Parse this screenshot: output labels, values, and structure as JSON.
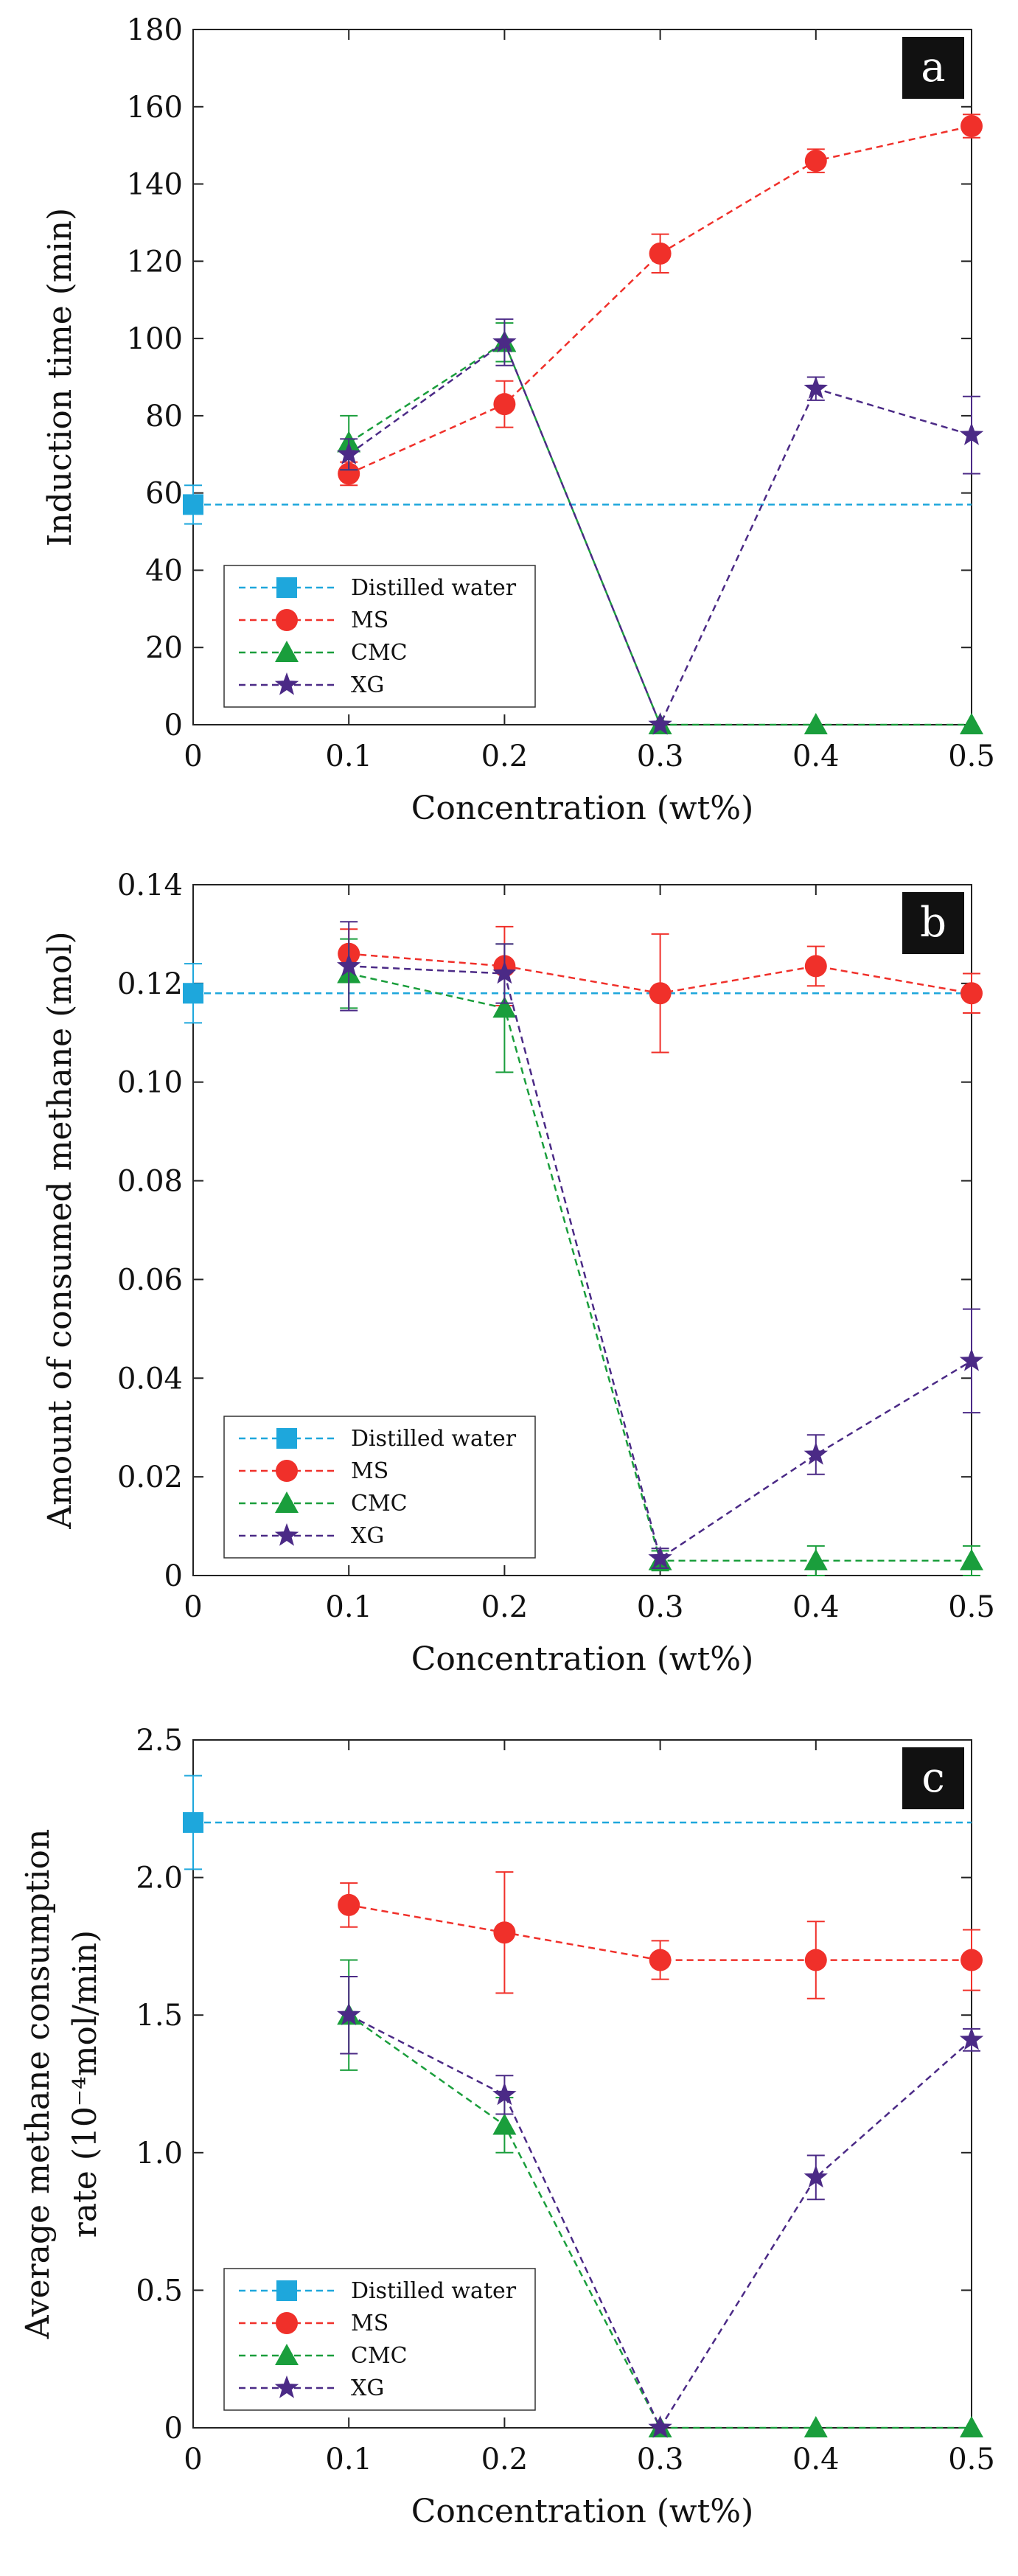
{
  "chart_data": [
    {
      "type": "line",
      "panel_label": "a",
      "xlabel": "Concentration (wt%)",
      "ylabel": "Induction time (min)",
      "xlim": [
        0,
        0.5
      ],
      "ylim": [
        0,
        180
      ],
      "x_ticks": [
        0,
        0.1,
        0.2,
        0.3,
        0.4,
        0.5
      ],
      "x_tick_labels": [
        "0",
        "0.1",
        "0.2",
        "0.3",
        "0.4",
        "0.5"
      ],
      "y_ticks": [
        0,
        20,
        40,
        60,
        80,
        100,
        120,
        140,
        160,
        180
      ],
      "y_tick_labels": [
        "0",
        "20",
        "40",
        "60",
        "80",
        "100",
        "120",
        "140",
        "160",
        "180"
      ],
      "legend_position": "bottom-left",
      "series": [
        {
          "name": "Distilled water",
          "color": "#1ea7dc",
          "marker": "square",
          "x": [
            0
          ],
          "values": [
            57
          ],
          "err": [
            5
          ],
          "baseline": 57
        },
        {
          "name": "MS",
          "color": "#f0302a",
          "marker": "circle",
          "x": [
            0.1,
            0.2,
            0.3,
            0.4,
            0.5
          ],
          "values": [
            65,
            83,
            122,
            146,
            155
          ],
          "err": [
            3,
            6,
            5,
            3,
            3
          ]
        },
        {
          "name": "CMC",
          "color": "#1a9e3c",
          "marker": "triangle",
          "x": [
            0.1,
            0.2,
            0.3,
            0.4,
            0.5
          ],
          "values": [
            73,
            99,
            0,
            0,
            0
          ],
          "err": [
            7,
            5,
            0,
            0,
            0
          ]
        },
        {
          "name": "XG",
          "color": "#4b2a86",
          "marker": "star",
          "x": [
            0.1,
            0.2,
            0.3,
            0.4,
            0.5
          ],
          "values": [
            70,
            99,
            0,
            87,
            75
          ],
          "err": [
            4,
            6,
            0,
            3,
            10
          ]
        }
      ]
    },
    {
      "type": "line",
      "panel_label": "b",
      "xlabel": "Concentration (wt%)",
      "ylabel": "Amount of consumed methane (mol)",
      "xlim": [
        0,
        0.5
      ],
      "ylim": [
        0,
        0.14
      ],
      "x_ticks": [
        0,
        0.1,
        0.2,
        0.3,
        0.4,
        0.5
      ],
      "x_tick_labels": [
        "0",
        "0.1",
        "0.2",
        "0.3",
        "0.4",
        "0.5"
      ],
      "y_ticks": [
        0,
        0.02,
        0.04,
        0.06,
        0.08,
        0.1,
        0.12,
        0.14
      ],
      "y_tick_labels": [
        "0",
        "0.02",
        "0.04",
        "0.06",
        "0.08",
        "0.10",
        "0.12",
        "0.14"
      ],
      "legend_position": "bottom-left",
      "series": [
        {
          "name": "Distilled water",
          "color": "#1ea7dc",
          "marker": "square",
          "x": [
            0
          ],
          "values": [
            0.118
          ],
          "err": [
            0.006
          ],
          "baseline": 0.118
        },
        {
          "name": "MS",
          "color": "#f0302a",
          "marker": "circle",
          "x": [
            0.1,
            0.2,
            0.3,
            0.4,
            0.5
          ],
          "values": [
            0.126,
            0.1235,
            0.118,
            0.1235,
            0.118
          ],
          "err": [
            0.005,
            0.008,
            0.012,
            0.004,
            0.004
          ]
        },
        {
          "name": "CMC",
          "color": "#1a9e3c",
          "marker": "triangle",
          "x": [
            0.1,
            0.2,
            0.3,
            0.4,
            0.5
          ],
          "values": [
            0.122,
            0.115,
            0.003,
            0.003,
            0.003
          ],
          "err": [
            0.007,
            0.013,
            0.002,
            0.003,
            0.003
          ]
        },
        {
          "name": "XG",
          "color": "#4b2a86",
          "marker": "star",
          "x": [
            0.1,
            0.2,
            0.3,
            0.4,
            0.5
          ],
          "values": [
            0.1235,
            0.122,
            0.0035,
            0.0245,
            0.0435
          ],
          "err": [
            0.009,
            0.006,
            0.002,
            0.004,
            0.0105
          ]
        }
      ]
    },
    {
      "type": "line",
      "panel_label": "c",
      "xlabel": "Concentration (wt%)",
      "ylabel_lines": [
        "Average methane consumption",
        "rate (10⁻⁴mol/min)"
      ],
      "xlim": [
        0,
        0.5
      ],
      "ylim": [
        0,
        2.5
      ],
      "x_ticks": [
        0,
        0.1,
        0.2,
        0.3,
        0.4,
        0.5
      ],
      "x_tick_labels": [
        "0",
        "0.1",
        "0.2",
        "0.3",
        "0.4",
        "0.5"
      ],
      "y_ticks": [
        0,
        0.5,
        1,
        1.5,
        2,
        2.5
      ],
      "y_tick_labels": [
        "0",
        "0.5",
        "1.0",
        "1.5",
        "2.0",
        "2.5"
      ],
      "legend_position": "bottom-left",
      "series": [
        {
          "name": "Distilled water",
          "color": "#1ea7dc",
          "marker": "square",
          "x": [
            0
          ],
          "values": [
            2.2
          ],
          "err": [
            0.17
          ],
          "baseline": 2.2
        },
        {
          "name": "MS",
          "color": "#f0302a",
          "marker": "circle",
          "x": [
            0.1,
            0.2,
            0.3,
            0.4,
            0.5
          ],
          "values": [
            1.9,
            1.8,
            1.7,
            1.7,
            1.7
          ],
          "err": [
            0.08,
            0.22,
            0.07,
            0.14,
            0.11
          ]
        },
        {
          "name": "CMC",
          "color": "#1a9e3c",
          "marker": "triangle",
          "x": [
            0.1,
            0.2,
            0.3,
            0.4,
            0.5
          ],
          "values": [
            1.5,
            1.1,
            0,
            0,
            0
          ],
          "err": [
            0.2,
            0.1,
            0,
            0,
            0
          ]
        },
        {
          "name": "XG",
          "color": "#4b2a86",
          "marker": "star",
          "x": [
            0.1,
            0.2,
            0.3,
            0.4,
            0.5
          ],
          "values": [
            1.5,
            1.21,
            0,
            0.91,
            1.41
          ],
          "err": [
            0.14,
            0.07,
            0,
            0.08,
            0.04
          ]
        }
      ]
    }
  ]
}
